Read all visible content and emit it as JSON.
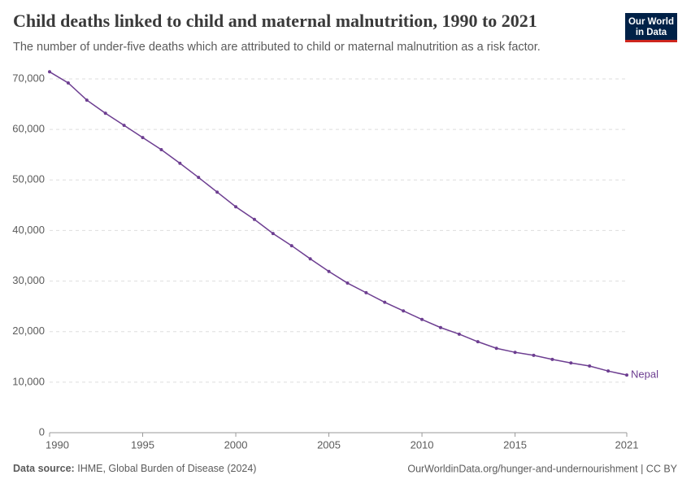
{
  "chart_data": {
    "type": "line",
    "title": "Child deaths linked to child and maternal malnutrition, 1990 to 2021",
    "subtitle": "The number of under-five deaths which are attributed to child or maternal malnutrition as a risk factor.",
    "logo": [
      "Our World",
      "in Data"
    ],
    "source_label": "Data source:",
    "source": "IHME, Global Burden of Disease (2024)",
    "url": "OurWorldinData.org/hunger-and-undernourishment | CC BY",
    "x": [
      1990,
      1991,
      1992,
      1993,
      1994,
      1995,
      1996,
      1997,
      1998,
      1999,
      2000,
      2001,
      2002,
      2003,
      2004,
      2005,
      2006,
      2007,
      2008,
      2009,
      2010,
      2011,
      2012,
      2013,
      2014,
      2015,
      2016,
      2017,
      2018,
      2019,
      2020,
      2021
    ],
    "series": [
      {
        "name": "Nepal",
        "color": "#6d3e91",
        "values": [
          71400,
          69200,
          65800,
          63200,
          60800,
          58400,
          56000,
          53300,
          50500,
          47600,
          44700,
          42200,
          39400,
          37000,
          34400,
          31900,
          29600,
          27700,
          25800,
          24100,
          22400,
          20800,
          19500,
          18000,
          16700,
          15900,
          15300,
          14500,
          13800,
          13200,
          12200,
          11400
        ]
      }
    ],
    "xlim": [
      1990,
      2021
    ],
    "xticks": [
      1990,
      1995,
      2000,
      2005,
      2010,
      2015,
      2021
    ],
    "ylim": [
      0,
      70000
    ],
    "yticks": [
      0,
      {
        "value": 10000,
        "label": "10,000"
      },
      {
        "value": 20000,
        "label": "20,000"
      },
      {
        "value": 30000,
        "label": "30,000"
      },
      {
        "value": 40000,
        "label": "40,000"
      },
      {
        "value": 50000,
        "label": "50,000"
      },
      {
        "value": 60000,
        "label": "60,000"
      },
      {
        "value": 70000,
        "label": "70,000"
      }
    ],
    "grid": true
  }
}
